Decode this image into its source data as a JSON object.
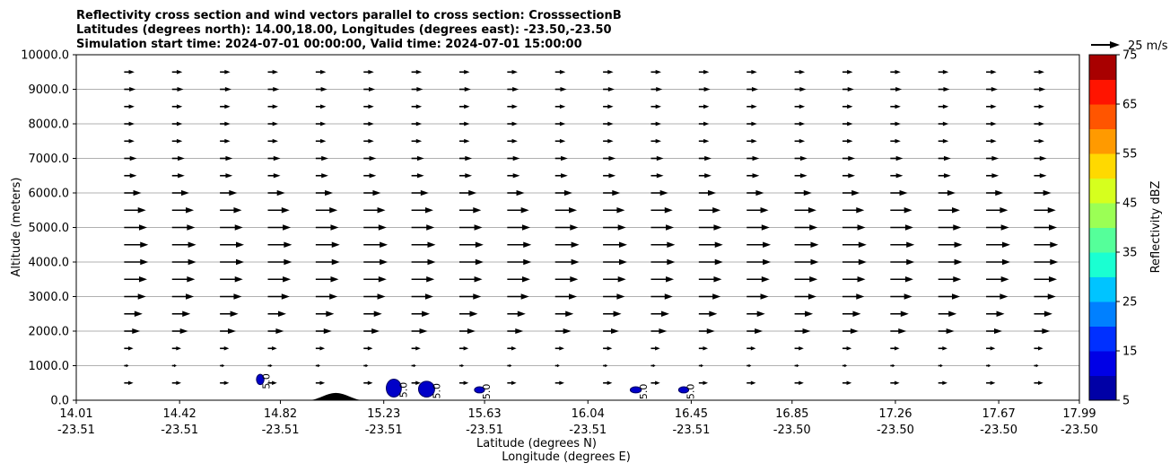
{
  "chart_data": {
    "type": "quiver-contour",
    "title_lines": [
      "Reflectivity cross section and wind vectors parallel to cross section: CrosssectionB",
      "Latitudes (degrees north): 14.00,18.00, Longitudes (degrees east): -23.50,-23.50",
      "Simulation start time: 2024-07-01 00:00:00, Valid time: 2024-07-01 15:00:00"
    ],
    "xlabel": "Latitude (degrees N)",
    "xlabel2": "Longitude (degrees E)",
    "ylabel": "Altitude (meters)",
    "xlim": [
      14.01,
      17.99
    ],
    "ylim": [
      0,
      10000
    ],
    "grid": "horizontal",
    "x_ticks": [
      {
        "lat": "14.01",
        "lon": "-23.51",
        "v": 14.01
      },
      {
        "lat": "14.42",
        "lon": "-23.51",
        "v": 14.42
      },
      {
        "lat": "14.82",
        "lon": "-23.51",
        "v": 14.82
      },
      {
        "lat": "15.23",
        "lon": "-23.51",
        "v": 15.23
      },
      {
        "lat": "15.63",
        "lon": "-23.51",
        "v": 15.63
      },
      {
        "lat": "16.04",
        "lon": "-23.51",
        "v": 16.04
      },
      {
        "lat": "16.45",
        "lon": "-23.51",
        "v": 16.45
      },
      {
        "lat": "16.85",
        "lon": "-23.50",
        "v": 16.85
      },
      {
        "lat": "17.26",
        "lon": "-23.50",
        "v": 17.26
      },
      {
        "lat": "17.67",
        "lon": "-23.50",
        "v": 17.67
      },
      {
        "lat": "17.99",
        "lon": "-23.50",
        "v": 17.99
      }
    ],
    "y_ticks": [
      {
        "label": "0.0",
        "v": 0
      },
      {
        "label": "1000.0",
        "v": 1000
      },
      {
        "label": "2000.0",
        "v": 2000
      },
      {
        "label": "3000.0",
        "v": 3000
      },
      {
        "label": "4000.0",
        "v": 4000
      },
      {
        "label": "5000.0",
        "v": 5000
      },
      {
        "label": "6000.0",
        "v": 6000
      },
      {
        "label": "7000.0",
        "v": 7000
      },
      {
        "label": "8000.0",
        "v": 8000
      },
      {
        "label": "9000.0",
        "v": 9000
      },
      {
        "label": "10000.0",
        "v": 10000
      }
    ],
    "quiver_key": {
      "label": "25 m/s",
      "speed": 25
    },
    "vector_columns": {
      "x_start": 14.2,
      "x_step": 0.19,
      "count": 20
    },
    "wind_profile": [
      {
        "alt": 500,
        "speed": 8
      },
      {
        "alt": 1000,
        "speed": 4
      },
      {
        "alt": 1500,
        "speed": 8
      },
      {
        "alt": 2000,
        "speed": 14
      },
      {
        "alt": 2500,
        "speed": 16
      },
      {
        "alt": 3000,
        "speed": 19
      },
      {
        "alt": 3500,
        "speed": 20
      },
      {
        "alt": 4000,
        "speed": 21
      },
      {
        "alt": 4500,
        "speed": 21
      },
      {
        "alt": 5000,
        "speed": 20
      },
      {
        "alt": 5500,
        "speed": 19
      },
      {
        "alt": 6000,
        "speed": 15
      },
      {
        "alt": 6500,
        "speed": 11
      },
      {
        "alt": 7000,
        "speed": 11
      },
      {
        "alt": 7500,
        "speed": 9
      },
      {
        "alt": 8000,
        "speed": 9
      },
      {
        "alt": 8500,
        "speed": 9
      },
      {
        "alt": 9000,
        "speed": 10
      },
      {
        "alt": 9500,
        "speed": 9
      }
    ],
    "terrain": {
      "center": 15.04,
      "half_width": 0.11,
      "peak_alt": 210
    },
    "reflectivity_cells": [
      {
        "x": 14.74,
        "alt": 600,
        "rx": 0.015,
        "ralt": 150,
        "label": "5.0"
      },
      {
        "x": 15.27,
        "alt": 350,
        "rx": 0.03,
        "ralt": 260,
        "label": "5.0"
      },
      {
        "x": 15.4,
        "alt": 320,
        "rx": 0.032,
        "ralt": 230,
        "label": "5.0"
      },
      {
        "x": 15.61,
        "alt": 300,
        "rx": 0.02,
        "ralt": 90,
        "label": "5.0"
      },
      {
        "x": 16.23,
        "alt": 300,
        "rx": 0.022,
        "ralt": 90,
        "label": "5.0"
      },
      {
        "x": 16.42,
        "alt": 300,
        "rx": 0.02,
        "ralt": 90,
        "label": "5.0"
      }
    ],
    "colorbar": {
      "label": "Reflectivity dBZ",
      "range": [
        5,
        75
      ],
      "tick_labels": [
        "5",
        "15",
        "25",
        "35",
        "45",
        "55",
        "65",
        "75"
      ],
      "tick_values": [
        5,
        15,
        25,
        35,
        45,
        55,
        65,
        75
      ],
      "colors": [
        "#0000a6",
        "#0000e6",
        "#0030ff",
        "#0080ff",
        "#00c4ff",
        "#1affd2",
        "#55ff9a",
        "#9bff55",
        "#d6ff1e",
        "#ffd900",
        "#ff9a00",
        "#ff5500",
        "#ff1400",
        "#a80000"
      ]
    }
  }
}
